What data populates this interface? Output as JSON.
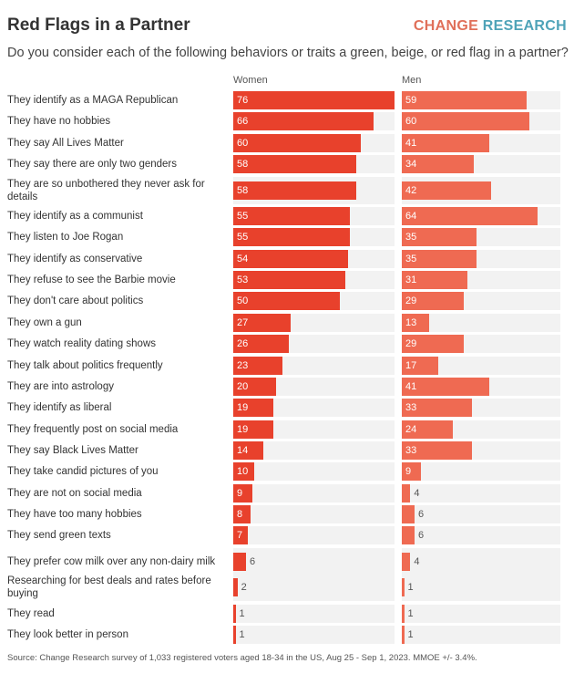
{
  "chart_data": {
    "type": "bar",
    "title": "Red Flags in a Partner",
    "subtitle": "Do you consider each of the following behaviors or traits a green, beige, or red flag in a partner?",
    "brand": {
      "part1": "CHANGE",
      "part2": "RESEARCH"
    },
    "categories": [
      "They identify as a MAGA Republican",
      "They have no hobbies",
      "They say All Lives Matter",
      "They say there are only two genders",
      "They are so unbothered they never ask for details",
      "They identify as a communist",
      "They listen to Joe Rogan",
      "They identify as conservative",
      "They refuse to see the Barbie movie",
      "They don't care about politics",
      "They own a gun",
      "They watch reality dating shows",
      "They talk about politics frequently",
      "They are into astrology",
      "They identify as liberal",
      "They frequently post on social media",
      "They say Black Lives Matter",
      "They take candid pictures of you",
      "They are not on social media",
      "They have too many hobbies",
      "They send green texts",
      "They prefer cow milk over any non-dairy milk",
      "Researching for best deals and rates before buying",
      "They read",
      "They look better in person"
    ],
    "series": [
      {
        "name": "Women",
        "color": "#e8412c",
        "values": [
          76,
          66,
          60,
          58,
          58,
          55,
          55,
          54,
          53,
          50,
          27,
          26,
          23,
          20,
          19,
          19,
          14,
          10,
          9,
          8,
          7,
          6,
          2,
          1,
          1
        ]
      },
      {
        "name": "Men",
        "color": "#ef6a52",
        "values": [
          59,
          60,
          41,
          34,
          42,
          64,
          35,
          35,
          31,
          29,
          13,
          29,
          17,
          41,
          33,
          24,
          33,
          9,
          4,
          6,
          6,
          4,
          1,
          1,
          1
        ]
      }
    ],
    "xlim": [
      0,
      76
    ],
    "grid": false,
    "legend": "none",
    "footnote": "Source: Change Research survey of 1,033 registered voters aged 18-34 in the US, Aug 25 - Sep 1, 2023. MMOE +/- 3.4%."
  }
}
